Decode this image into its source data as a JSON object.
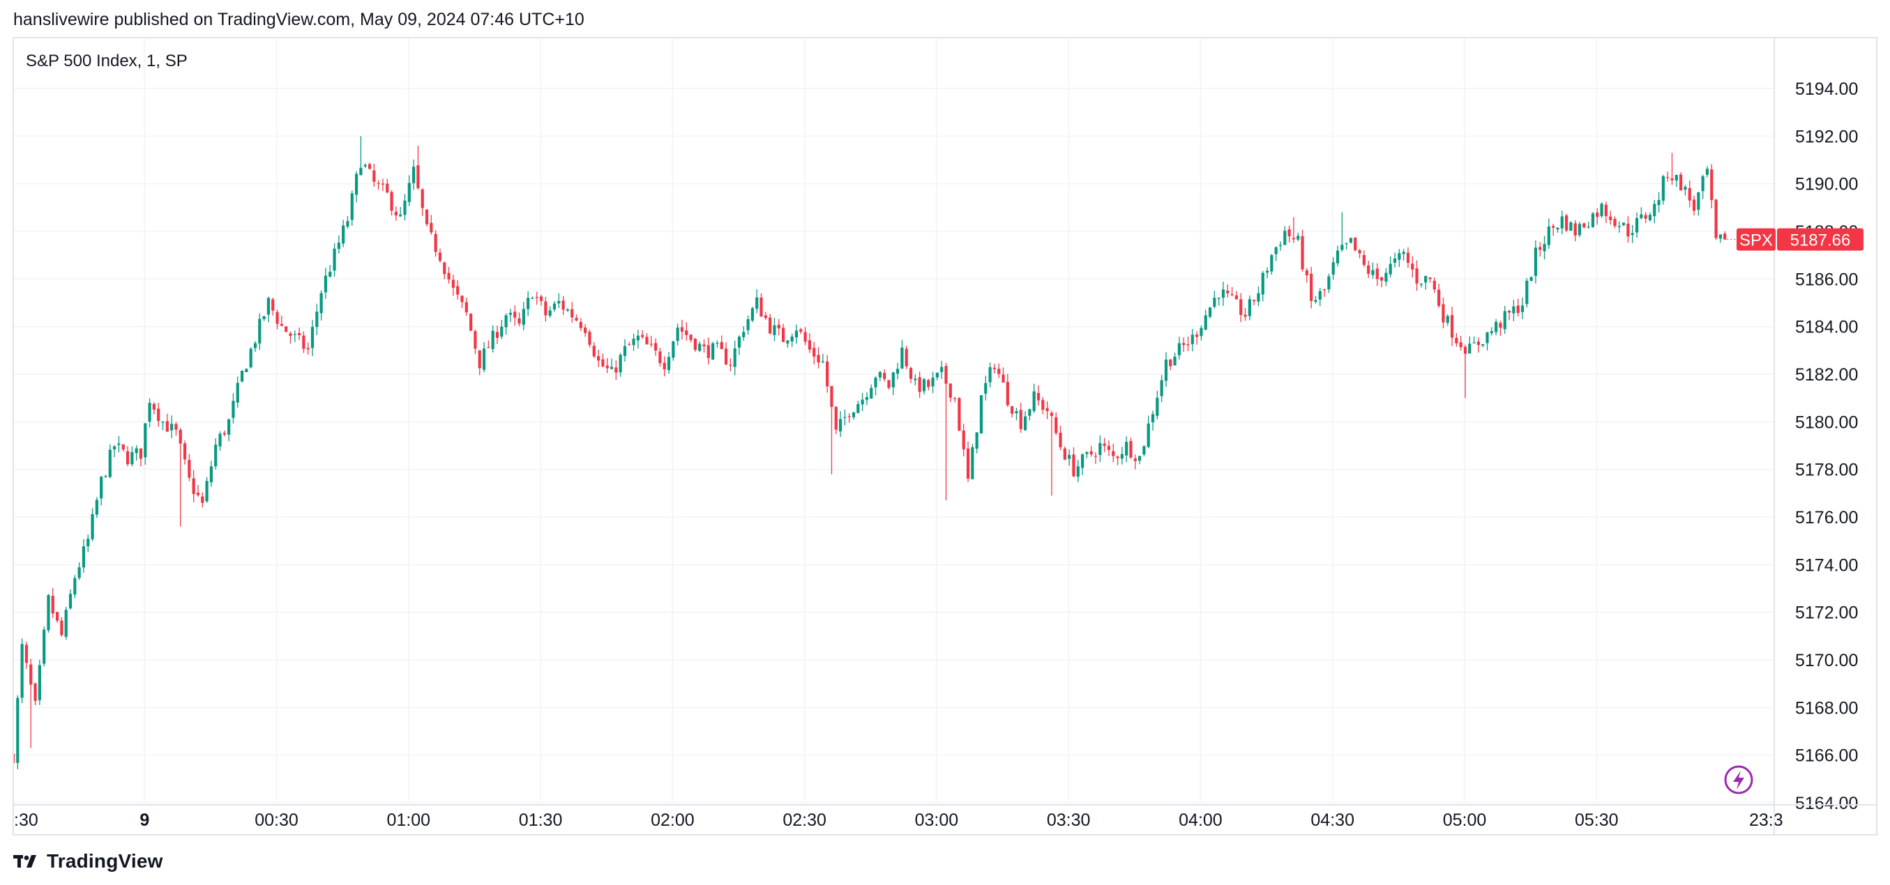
{
  "publish_caption": "hanslivewire published on TradingView.com, May 09, 2024 07:46 UTC+10",
  "brand": {
    "name": "TradingView",
    "logo_icon": "tradingview-logo-icon"
  },
  "price_badge": {
    "symbol": "SPX",
    "value": "5187.66",
    "color": "#f23645"
  },
  "event_icon": "lightning-bolt-icon",
  "colors": {
    "up": "#089981",
    "down": "#f23645",
    "grid": "#f0f3fa",
    "axis_text": "#131722"
  },
  "chart_data": {
    "type": "candlestick",
    "title": "S&P 500 Index, 1, SP",
    "ylabel": "",
    "xlabel": "",
    "ylim": [
      5163,
      5195
    ],
    "y_ticks": [
      "5164.00",
      "5166.00",
      "5168.00",
      "5170.00",
      "5172.00",
      "5174.00",
      "5176.00",
      "5178.00",
      "5180.00",
      "5182.00",
      "5184.00",
      "5186.00",
      "5188.00",
      "5190.00",
      "5192.00",
      "5194.00"
    ],
    "x_ticks": [
      {
        "label": ":30",
        "time": "23:30"
      },
      {
        "label": "9",
        "time": "00:00"
      },
      {
        "label": "00:30",
        "time": "00:30"
      },
      {
        "label": "01:00",
        "time": "01:00"
      },
      {
        "label": "01:30",
        "time": "01:30"
      },
      {
        "label": "02:00",
        "time": "02:00"
      },
      {
        "label": "02:30",
        "time": "02:30"
      },
      {
        "label": "03:00",
        "time": "03:00"
      },
      {
        "label": "03:30",
        "time": "03:30"
      },
      {
        "label": "04:00",
        "time": "04:00"
      },
      {
        "label": "04:30",
        "time": "04:30"
      },
      {
        "label": "05:00",
        "time": "05:00"
      },
      {
        "label": "05:30",
        "time": "05:30"
      },
      {
        "label": "23:3",
        "time": "06:20"
      }
    ],
    "last_price": 5187.66,
    "close_path": [
      {
        "t": "23:30",
        "p": 5166.0
      },
      {
        "t": "23:32",
        "p": 5170.5
      },
      {
        "t": "23:35",
        "p": 5168.0
      },
      {
        "t": "23:38",
        "p": 5172.5
      },
      {
        "t": "23:41",
        "p": 5171.0
      },
      {
        "t": "23:44",
        "p": 5173.5
      },
      {
        "t": "23:47",
        "p": 5175.0
      },
      {
        "t": "23:50",
        "p": 5177.5
      },
      {
        "t": "23:53",
        "p": 5179.0
      },
      {
        "t": "23:56",
        "p": 5178.5
      },
      {
        "t": "23:59",
        "p": 5178.7
      },
      {
        "t": "00:01",
        "p": 5181.0
      },
      {
        "t": "00:04",
        "p": 5180.0
      },
      {
        "t": "00:07",
        "p": 5179.5
      },
      {
        "t": "00:10",
        "p": 5177.5
      },
      {
        "t": "00:13",
        "p": 5176.5
      },
      {
        "t": "00:16",
        "p": 5179.0
      },
      {
        "t": "00:19",
        "p": 5180.0
      },
      {
        "t": "00:22",
        "p": 5182.0
      },
      {
        "t": "00:25",
        "p": 5183.5
      },
      {
        "t": "00:28",
        "p": 5185.0
      },
      {
        "t": "00:31",
        "p": 5184.0
      },
      {
        "t": "00:34",
        "p": 5183.5
      },
      {
        "t": "00:37",
        "p": 5183.0
      },
      {
        "t": "00:40",
        "p": 5185.5
      },
      {
        "t": "00:43",
        "p": 5187.0
      },
      {
        "t": "00:46",
        "p": 5188.5
      },
      {
        "t": "00:49",
        "p": 5191.0
      },
      {
        "t": "00:52",
        "p": 5190.0
      },
      {
        "t": "00:55",
        "p": 5189.5
      },
      {
        "t": "00:58",
        "p": 5188.5
      },
      {
        "t": "01:01",
        "p": 5190.5
      },
      {
        "t": "01:04",
        "p": 5188.0
      },
      {
        "t": "01:07",
        "p": 5187.0
      },
      {
        "t": "01:10",
        "p": 5185.5
      },
      {
        "t": "01:13",
        "p": 5184.5
      },
      {
        "t": "01:16",
        "p": 5182.5
      },
      {
        "t": "01:19",
        "p": 5183.5
      },
      {
        "t": "01:22",
        "p": 5184.5
      },
      {
        "t": "01:25",
        "p": 5184.0
      },
      {
        "t": "01:28",
        "p": 5185.5
      },
      {
        "t": "01:31",
        "p": 5184.5
      },
      {
        "t": "01:34",
        "p": 5185.0
      },
      {
        "t": "01:37",
        "p": 5184.5
      },
      {
        "t": "01:40",
        "p": 5184.0
      },
      {
        "t": "01:43",
        "p": 5182.5
      },
      {
        "t": "01:46",
        "p": 5182.0
      },
      {
        "t": "01:49",
        "p": 5183.0
      },
      {
        "t": "01:52",
        "p": 5183.5
      },
      {
        "t": "01:55",
        "p": 5183.0
      },
      {
        "t": "01:58",
        "p": 5182.5
      },
      {
        "t": "02:01",
        "p": 5184.0
      },
      {
        "t": "02:04",
        "p": 5183.5
      },
      {
        "t": "02:07",
        "p": 5183.0
      },
      {
        "t": "02:10",
        "p": 5183.0
      },
      {
        "t": "02:13",
        "p": 5182.5
      },
      {
        "t": "02:16",
        "p": 5184.0
      },
      {
        "t": "02:19",
        "p": 5185.0
      },
      {
        "t": "02:22",
        "p": 5184.0
      },
      {
        "t": "02:25",
        "p": 5183.5
      },
      {
        "t": "02:28",
        "p": 5184.0
      },
      {
        "t": "02:31",
        "p": 5183.0
      },
      {
        "t": "02:34",
        "p": 5182.5
      },
      {
        "t": "02:37",
        "p": 5179.5
      },
      {
        "t": "02:40",
        "p": 5180.5
      },
      {
        "t": "02:43",
        "p": 5181.0
      },
      {
        "t": "02:46",
        "p": 5182.0
      },
      {
        "t": "02:49",
        "p": 5181.5
      },
      {
        "t": "02:52",
        "p": 5183.0
      },
      {
        "t": "02:55",
        "p": 5181.5
      },
      {
        "t": "02:58",
        "p": 5181.5
      },
      {
        "t": "03:01",
        "p": 5182.0
      },
      {
        "t": "03:04",
        "p": 5181.0
      },
      {
        "t": "03:07",
        "p": 5177.5
      },
      {
        "t": "03:10",
        "p": 5181.0
      },
      {
        "t": "03:13",
        "p": 5182.5
      },
      {
        "t": "03:16",
        "p": 5181.0
      },
      {
        "t": "03:19",
        "p": 5180.0
      },
      {
        "t": "03:22",
        "p": 5181.0
      },
      {
        "t": "03:25",
        "p": 5180.5
      },
      {
        "t": "03:28",
        "p": 5179.0
      },
      {
        "t": "03:31",
        "p": 5178.0
      },
      {
        "t": "03:34",
        "p": 5178.5
      },
      {
        "t": "03:37",
        "p": 5179.0
      },
      {
        "t": "03:40",
        "p": 5178.5
      },
      {
        "t": "03:43",
        "p": 5179.0
      },
      {
        "t": "03:46",
        "p": 5178.5
      },
      {
        "t": "03:49",
        "p": 5180.5
      },
      {
        "t": "03:52",
        "p": 5182.5
      },
      {
        "t": "03:55",
        "p": 5183.0
      },
      {
        "t": "03:58",
        "p": 5183.5
      },
      {
        "t": "04:01",
        "p": 5184.5
      },
      {
        "t": "04:04",
        "p": 5185.5
      },
      {
        "t": "04:07",
        "p": 5185.0
      },
      {
        "t": "04:10",
        "p": 5184.5
      },
      {
        "t": "04:13",
        "p": 5185.5
      },
      {
        "t": "04:16",
        "p": 5187.0
      },
      {
        "t": "04:19",
        "p": 5188.0
      },
      {
        "t": "04:22",
        "p": 5187.5
      },
      {
        "t": "04:25",
        "p": 5185.0
      },
      {
        "t": "04:28",
        "p": 5185.5
      },
      {
        "t": "04:31",
        "p": 5187.0
      },
      {
        "t": "04:34",
        "p": 5187.5
      },
      {
        "t": "04:37",
        "p": 5186.5
      },
      {
        "t": "04:40",
        "p": 5186.0
      },
      {
        "t": "04:43",
        "p": 5186.5
      },
      {
        "t": "04:46",
        "p": 5187.0
      },
      {
        "t": "04:49",
        "p": 5186.0
      },
      {
        "t": "04:52",
        "p": 5186.0
      },
      {
        "t": "04:55",
        "p": 5184.5
      },
      {
        "t": "04:58",
        "p": 5183.5
      },
      {
        "t": "05:01",
        "p": 5183.0
      },
      {
        "t": "05:04",
        "p": 5183.5
      },
      {
        "t": "05:07",
        "p": 5184.0
      },
      {
        "t": "05:10",
        "p": 5184.5
      },
      {
        "t": "05:13",
        "p": 5185.0
      },
      {
        "t": "05:16",
        "p": 5187.0
      },
      {
        "t": "05:19",
        "p": 5188.0
      },
      {
        "t": "05:22",
        "p": 5188.5
      },
      {
        "t": "05:25",
        "p": 5188.0
      },
      {
        "t": "05:28",
        "p": 5188.5
      },
      {
        "t": "05:31",
        "p": 5189.0
      },
      {
        "t": "05:34",
        "p": 5188.5
      },
      {
        "t": "05:37",
        "p": 5188.0
      },
      {
        "t": "05:40",
        "p": 5188.5
      },
      {
        "t": "05:43",
        "p": 5189.0
      },
      {
        "t": "05:46",
        "p": 5190.5
      },
      {
        "t": "05:49",
        "p": 5190.0
      },
      {
        "t": "05:52",
        "p": 5189.0
      },
      {
        "t": "05:55",
        "p": 5190.5
      },
      {
        "t": "05:57",
        "p": 5187.5
      },
      {
        "t": "05:59",
        "p": 5187.66
      }
    ],
    "extremes": [
      {
        "t": "23:30",
        "low": 5165.8
      },
      {
        "t": "23:34",
        "low": 5166.3
      },
      {
        "t": "00:08",
        "low": 5175.6
      },
      {
        "t": "00:49",
        "high": 5192.0
      },
      {
        "t": "01:02",
        "high": 5191.6
      },
      {
        "t": "02:36",
        "low": 5177.8
      },
      {
        "t": "03:02",
        "low": 5176.7
      },
      {
        "t": "03:26",
        "low": 5176.9
      },
      {
        "t": "04:21",
        "high": 5188.6
      },
      {
        "t": "04:32",
        "high": 5188.8
      },
      {
        "t": "05:00",
        "low": 5181.0
      },
      {
        "t": "05:47",
        "high": 5191.3
      }
    ]
  }
}
